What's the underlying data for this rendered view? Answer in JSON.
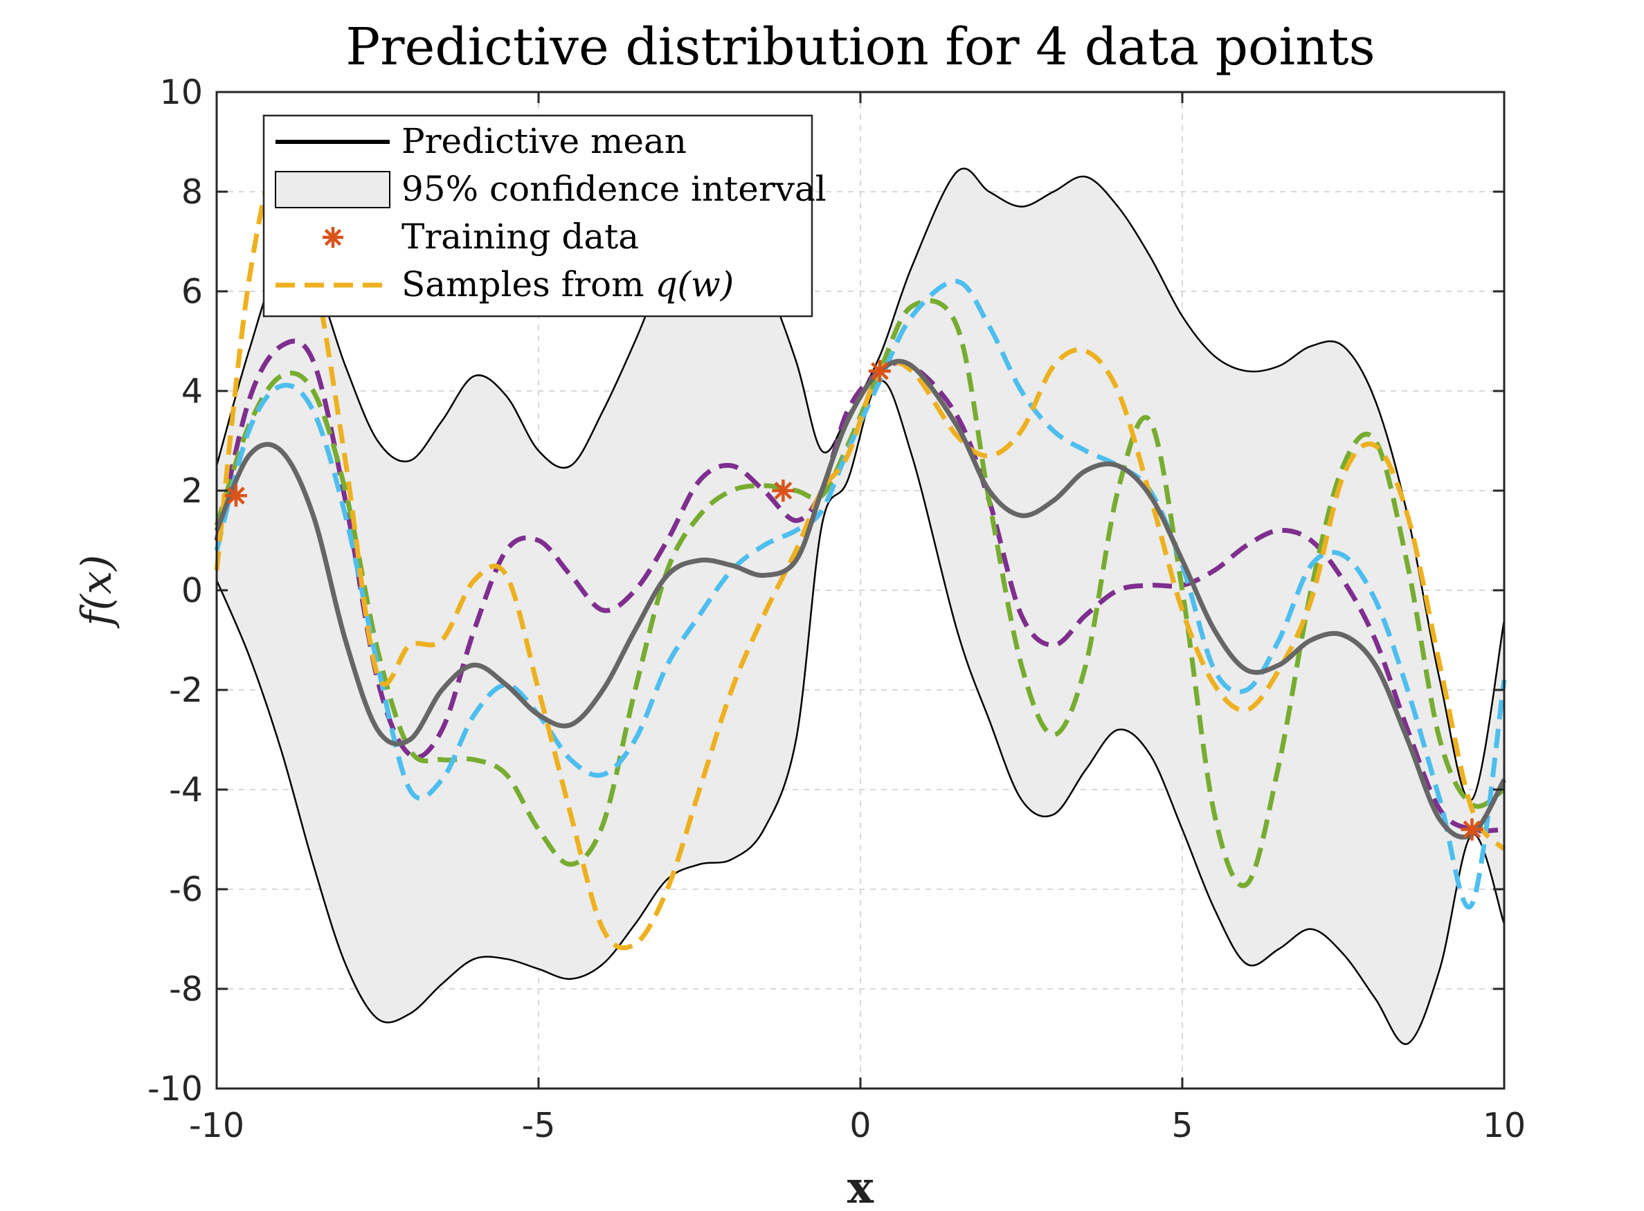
{
  "chart_data": {
    "type": "line",
    "title": "Predictive distribution for 4 data points",
    "xlabel": "x",
    "ylabel": "f(x)",
    "xlim": [
      -10,
      10
    ],
    "ylim": [
      -10,
      10
    ],
    "grid": true,
    "legend_position": "top-left",
    "xticks": [
      "-10",
      "-5",
      "0",
      "5",
      "10"
    ],
    "yticks": [
      "-10",
      "-8",
      "-6",
      "-4",
      "-2",
      "0",
      "2",
      "4",
      "6",
      "8",
      "10"
    ],
    "x": [
      -10,
      -9.5,
      -9,
      -8.5,
      -8,
      -7.5,
      -7,
      -6.5,
      -6,
      -5.5,
      -5,
      -4.5,
      -4,
      -3.5,
      -3,
      -2.5,
      -2,
      -1.5,
      -1,
      -0.6,
      -0.2,
      0.3,
      0.8,
      1.5,
      2,
      2.5,
      3,
      3.5,
      4,
      4.5,
      5,
      5.5,
      6,
      6.5,
      7,
      7.5,
      8,
      8.5,
      9,
      9.5,
      10
    ],
    "series": [
      {
        "name": "Predictive mean",
        "color": "#666666",
        "values": [
          1.2,
          2.7,
          2.8,
          1.5,
          -1.0,
          -2.8,
          -3.0,
          -2.0,
          -1.5,
          -1.9,
          -2.5,
          -2.7,
          -2.0,
          -0.8,
          0.3,
          0.6,
          0.5,
          0.3,
          0.6,
          2.0,
          3.4,
          4.4,
          4.5,
          3.3,
          2.0,
          1.5,
          1.8,
          2.4,
          2.5,
          1.9,
          0.6,
          -0.8,
          -1.6,
          -1.5,
          -1.0,
          -0.9,
          -1.5,
          -3.0,
          -4.6,
          -4.9,
          -3.8
        ]
      },
      {
        "name": "95% confidence interval (upper)",
        "color": "#000000",
        "values": [
          2.5,
          4.8,
          6.6,
          6.3,
          4.5,
          3.0,
          2.6,
          3.4,
          4.3,
          3.9,
          2.8,
          2.5,
          3.6,
          5.0,
          6.5,
          7.3,
          7.4,
          6.3,
          4.6,
          2.8,
          3.5,
          4.7,
          6.5,
          8.4,
          8.0,
          7.7,
          8.0,
          8.3,
          7.7,
          6.7,
          5.5,
          4.7,
          4.4,
          4.5,
          4.9,
          4.9,
          3.8,
          1.5,
          -1.8,
          -4.2,
          -0.6
        ]
      },
      {
        "name": "95% confidence interval (lower)",
        "color": "#000000",
        "values": [
          0.2,
          -1.3,
          -3.2,
          -5.5,
          -7.5,
          -8.6,
          -8.5,
          -7.9,
          -7.4,
          -7.4,
          -7.6,
          -7.8,
          -7.5,
          -6.7,
          -5.8,
          -5.5,
          -5.4,
          -4.8,
          -3.0,
          1.3,
          2.2,
          4.2,
          2.7,
          -0.8,
          -2.6,
          -4.2,
          -4.5,
          -3.6,
          -2.8,
          -3.3,
          -4.8,
          -6.4,
          -7.5,
          -7.2,
          -6.8,
          -7.3,
          -8.2,
          -9.1,
          -7.6,
          -4.9,
          -6.7
        ]
      },
      {
        "name": "Sample 1 (purple)",
        "color": "#7E2F8E",
        "values": [
          1.0,
          3.8,
          4.9,
          4.6,
          1.8,
          -1.8,
          -3.3,
          -2.8,
          -0.8,
          0.8,
          1.0,
          0.3,
          -0.4,
          0.0,
          1.0,
          2.2,
          2.5,
          2.0,
          1.4,
          2.0,
          3.6,
          4.4,
          4.5,
          3.5,
          1.8,
          -0.5,
          -1.1,
          -0.5,
          0.0,
          0.1,
          0.1,
          0.4,
          0.9,
          1.2,
          1.0,
          0.2,
          -1.0,
          -2.8,
          -4.4,
          -4.8,
          -4.8
        ]
      },
      {
        "name": "Sample 2 (green)",
        "color": "#77AC30",
        "values": [
          1.3,
          3.3,
          4.3,
          4.0,
          2.0,
          -1.2,
          -3.2,
          -3.4,
          -3.4,
          -3.7,
          -4.8,
          -5.5,
          -4.7,
          -2.0,
          0.4,
          1.5,
          2.0,
          2.1,
          2.0,
          1.9,
          2.9,
          4.4,
          5.7,
          5.3,
          1.8,
          -1.5,
          -2.9,
          -1.5,
          2.0,
          3.4,
          0.0,
          -4.5,
          -5.9,
          -3.5,
          0.0,
          2.5,
          3.0,
          0.5,
          -3.0,
          -4.3,
          -4.0
        ]
      },
      {
        "name": "Sample 3 (blue)",
        "color": "#4DBEEE",
        "values": [
          0.8,
          3.2,
          4.1,
          3.6,
          1.5,
          -1.5,
          -4.0,
          -3.8,
          -2.5,
          -1.9,
          -2.5,
          -3.4,
          -3.7,
          -3.0,
          -1.5,
          -0.5,
          0.4,
          0.9,
          1.2,
          1.6,
          2.8,
          4.2,
          5.5,
          6.2,
          5.3,
          4.0,
          3.2,
          2.8,
          2.5,
          2.0,
          0.5,
          -1.6,
          -2.0,
          -1.0,
          0.5,
          0.7,
          -0.2,
          -2.0,
          -4.2,
          -6.3,
          -1.8
        ]
      },
      {
        "name": "Samples from q(w)",
        "color": "#EDB120",
        "values": [
          0.4,
          6.2,
          8.7,
          6.5,
          2.6,
          -1.7,
          -1.1,
          -1.0,
          0.2,
          0.3,
          -2.0,
          -4.5,
          -6.8,
          -7.1,
          -6.0,
          -4.0,
          -2.0,
          -0.5,
          0.8,
          2.0,
          2.7,
          4.4,
          4.4,
          3.1,
          2.7,
          3.2,
          4.5,
          4.8,
          4.0,
          1.9,
          -0.4,
          -1.9,
          -2.4,
          -1.6,
          -0.2,
          2.3,
          2.9,
          1.5,
          -1.5,
          -4.4,
          -5.2
        ]
      }
    ],
    "training_data": {
      "name": "Training data",
      "color": "#D95319",
      "x": [
        -9.7,
        -1.2,
        0.3,
        9.5
      ],
      "y": [
        1.9,
        2.0,
        4.4,
        -4.8
      ]
    },
    "confidence_fill": "#ececec",
    "legend": [
      {
        "label_pre": "Predictive mean",
        "label_math": "",
        "label_post": "",
        "kind": "line",
        "color": "#000000"
      },
      {
        "label_pre": "95% confidence interval",
        "label_math": "",
        "label_post": "",
        "kind": "patch",
        "color": "#ececec"
      },
      {
        "label_pre": "Training data",
        "label_math": "",
        "label_post": "",
        "kind": "marker",
        "color": "#D95319"
      },
      {
        "label_pre": "Samples from ",
        "label_math": "q(w)",
        "label_post": "",
        "kind": "dashed",
        "color": "#EDB120"
      }
    ]
  }
}
